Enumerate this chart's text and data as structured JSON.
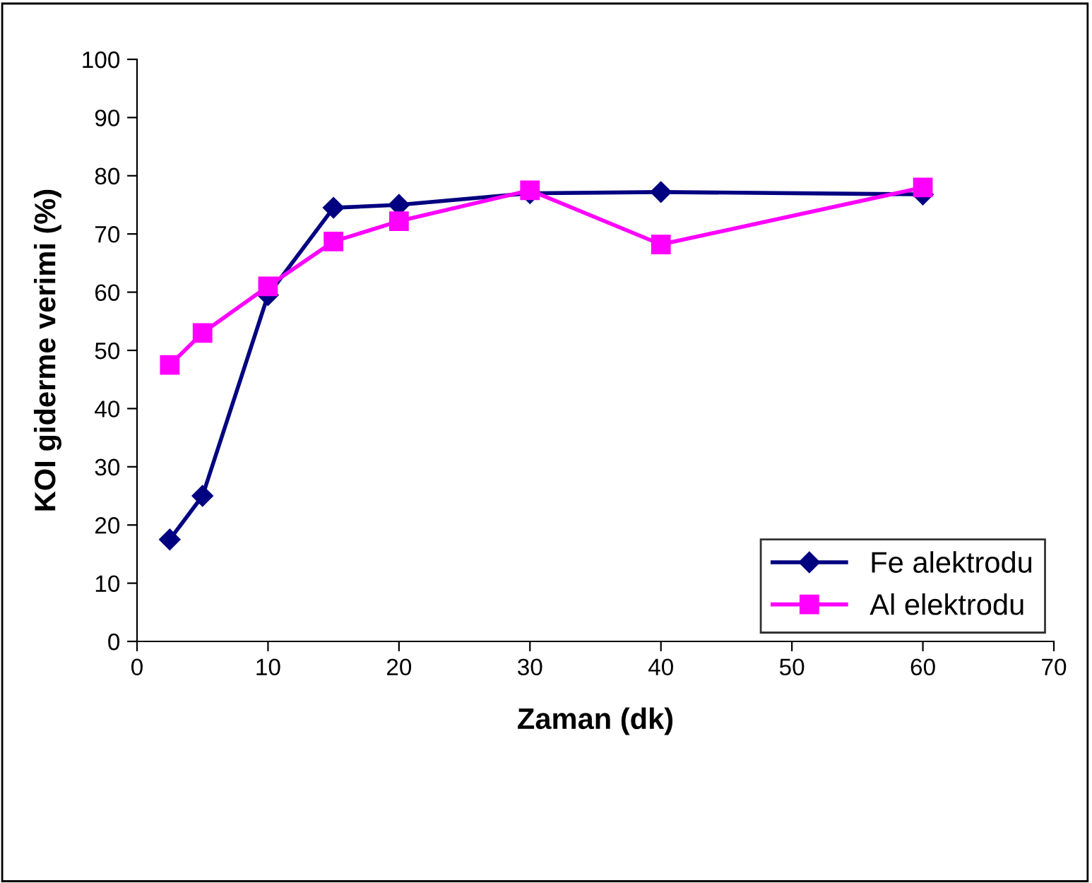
{
  "chart_data": {
    "type": "line",
    "xlabel": "Zaman (dk)",
    "ylabel": "KOI giderme verimi (%)",
    "xlim": [
      0,
      70
    ],
    "xticks": [
      0,
      10,
      20,
      30,
      40,
      50,
      60,
      70
    ],
    "ylim": [
      0,
      100
    ],
    "yticks": [
      0,
      10,
      20,
      30,
      40,
      50,
      60,
      70,
      80,
      90,
      100
    ],
    "grid": false,
    "legend": "bottom right",
    "line_style": "solid",
    "series": [
      {
        "name": "Fe alektrodu",
        "color": "#000080",
        "marker": "diamond",
        "x": [
          2.5,
          5,
          10,
          15,
          20,
          30,
          40,
          60
        ],
        "values": [
          17.5,
          25,
          59.5,
          74.5,
          75,
          77,
          77.2,
          76.8
        ]
      },
      {
        "name": "Al elektrodu",
        "color": "#ff00ff",
        "marker": "square",
        "x": [
          2.5,
          5,
          10,
          15,
          20,
          30,
          40,
          60
        ],
        "values": [
          47.5,
          53,
          61,
          68.7,
          72.2,
          77.5,
          68.2,
          78
        ]
      }
    ]
  }
}
